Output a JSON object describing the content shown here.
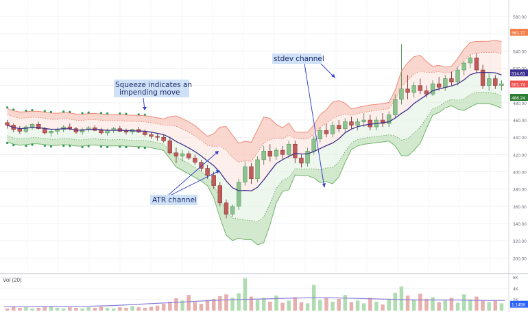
{
  "chart_data": {
    "type": "candlestick",
    "symbol_label": "",
    "y_axis": {
      "ticks": [
        580,
        560,
        540,
        520,
        500,
        480,
        460,
        440,
        420,
        400,
        380,
        360,
        340,
        320,
        300
      ],
      "range": [
        288,
        590
      ]
    },
    "price_labels": [
      {
        "text": "561.77",
        "value": 561.77,
        "color": "#f07f48"
      },
      {
        "text": "514.61",
        "value": 514.61,
        "color": "#3b2f8f"
      },
      {
        "text": "501.74",
        "value": 501.74,
        "color": "#ef5350"
      },
      {
        "text": "486.24",
        "value": 486.24,
        "color": "#2e7d32"
      }
    ],
    "candles": [
      [
        457,
        460,
        450,
        454
      ],
      [
        454,
        456,
        446,
        449
      ],
      [
        450,
        453,
        444,
        447
      ],
      [
        447,
        454,
        445,
        452
      ],
      [
        452,
        456,
        449,
        455
      ],
      [
        455,
        458,
        449,
        450
      ],
      [
        450,
        452,
        443,
        445
      ],
      [
        445,
        449,
        441,
        447
      ],
      [
        447,
        451,
        443,
        449
      ],
      [
        449,
        454,
        446,
        452
      ],
      [
        452,
        456,
        448,
        450
      ],
      [
        450,
        452,
        444,
        446
      ],
      [
        446,
        451,
        443,
        449
      ],
      [
        449,
        453,
        446,
        451
      ],
      [
        451,
        454,
        447,
        448
      ],
      [
        448,
        451,
        443,
        445
      ],
      [
        445,
        450,
        442,
        448
      ],
      [
        448,
        452,
        445,
        450
      ],
      [
        450,
        453,
        446,
        447
      ],
      [
        447,
        450,
        443,
        446
      ],
      [
        446,
        450,
        443,
        449
      ],
      [
        449,
        452,
        445,
        446
      ],
      [
        446,
        449,
        441,
        443
      ],
      [
        443,
        446,
        438,
        441
      ],
      [
        441,
        444,
        436,
        440
      ],
      [
        440,
        443,
        434,
        436
      ],
      [
        436,
        440,
        420,
        422
      ],
      [
        422,
        428,
        410,
        418
      ],
      [
        418,
        425,
        412,
        421
      ],
      [
        421,
        424,
        414,
        416
      ],
      [
        416,
        420,
        408,
        411
      ],
      [
        411,
        414,
        400,
        404
      ],
      [
        404,
        408,
        392,
        396
      ],
      [
        396,
        400,
        380,
        384
      ],
      [
        384,
        388,
        360,
        364
      ],
      [
        364,
        368,
        346,
        351
      ],
      [
        351,
        362,
        348,
        360
      ],
      [
        360,
        392,
        356,
        388
      ],
      [
        388,
        412,
        384,
        406
      ],
      [
        406,
        410,
        386,
        392
      ],
      [
        392,
        418,
        388,
        414
      ],
      [
        414,
        430,
        408,
        424
      ],
      [
        424,
        432,
        412,
        418
      ],
      [
        418,
        428,
        414,
        425
      ],
      [
        425,
        430,
        415,
        420
      ],
      [
        420,
        436,
        416,
        432
      ],
      [
        432,
        436,
        410,
        416
      ],
      [
        416,
        420,
        405,
        410
      ],
      [
        410,
        428,
        406,
        424
      ],
      [
        424,
        442,
        420,
        438
      ],
      [
        438,
        452,
        434,
        448
      ],
      [
        448,
        456,
        440,
        444
      ],
      [
        444,
        458,
        440,
        454
      ],
      [
        454,
        460,
        446,
        450
      ],
      [
        450,
        462,
        446,
        458
      ],
      [
        458,
        464,
        450,
        454
      ],
      [
        454,
        462,
        448,
        458
      ],
      [
        458,
        468,
        452,
        460
      ],
      [
        460,
        466,
        448,
        452
      ],
      [
        452,
        464,
        448,
        460
      ],
      [
        460,
        468,
        452,
        456
      ],
      [
        456,
        470,
        452,
        466
      ],
      [
        466,
        490,
        462,
        484
      ],
      [
        484,
        548,
        478,
        496
      ],
      [
        496,
        512,
        484,
        492
      ],
      [
        492,
        504,
        486,
        500
      ],
      [
        500,
        508,
        490,
        494
      ],
      [
        494,
        500,
        486,
        490
      ],
      [
        490,
        506,
        488,
        502
      ],
      [
        502,
        510,
        494,
        498
      ],
      [
        498,
        512,
        494,
        508
      ],
      [
        508,
        516,
        500,
        504
      ],
      [
        504,
        522,
        500,
        518
      ],
      [
        518,
        528,
        512,
        526
      ],
      [
        526,
        536,
        520,
        532
      ],
      [
        532,
        538,
        514,
        518
      ],
      [
        518,
        524,
        496,
        500
      ],
      [
        500,
        514,
        494,
        508
      ],
      [
        508,
        512,
        496,
        500
      ],
      [
        500,
        506,
        494,
        502
      ]
    ],
    "volume": {
      "label": "Vol (20)",
      "ticks": [
        "6K",
        "4K",
        "2K"
      ],
      "current_label": "1.145K",
      "range": [
        0,
        6000
      ],
      "values": [
        400,
        700,
        500,
        600,
        400,
        500,
        600,
        700,
        500,
        400,
        600,
        500,
        400,
        600,
        500,
        700,
        500,
        400,
        600,
        500,
        800,
        600,
        500,
        700,
        900,
        1200,
        1600,
        2200,
        1800,
        2800,
        1500,
        1200,
        1900,
        2100,
        2600,
        2900,
        2300,
        3100,
        5800,
        2500,
        1900,
        2300,
        1600,
        2700,
        1400,
        1800,
        2400,
        1500,
        1300,
        4600,
        1900,
        2300,
        1600,
        2100,
        2800,
        1500,
        1800,
        1300,
        2300,
        1600,
        1100,
        2100,
        3200,
        4300,
        2700,
        1900,
        3000,
        2100,
        2400,
        1500,
        1800,
        2300,
        1400,
        2900,
        2000,
        2500,
        1800,
        1500,
        1800,
        1300
      ],
      "ma": [
        700,
        700,
        720,
        760,
        800,
        900,
        1100,
        1300,
        1500,
        1700,
        1900,
        2000,
        2100,
        2200,
        2300,
        2300,
        2200,
        2100,
        2000,
        1900,
        1900,
        1900,
        1800,
        1800
      ]
    },
    "annotations": [
      {
        "text": "Squeeze indicates an impending move"
      },
      {
        "text": "stdev channel"
      },
      {
        "text": "ATR channel"
      }
    ]
  }
}
